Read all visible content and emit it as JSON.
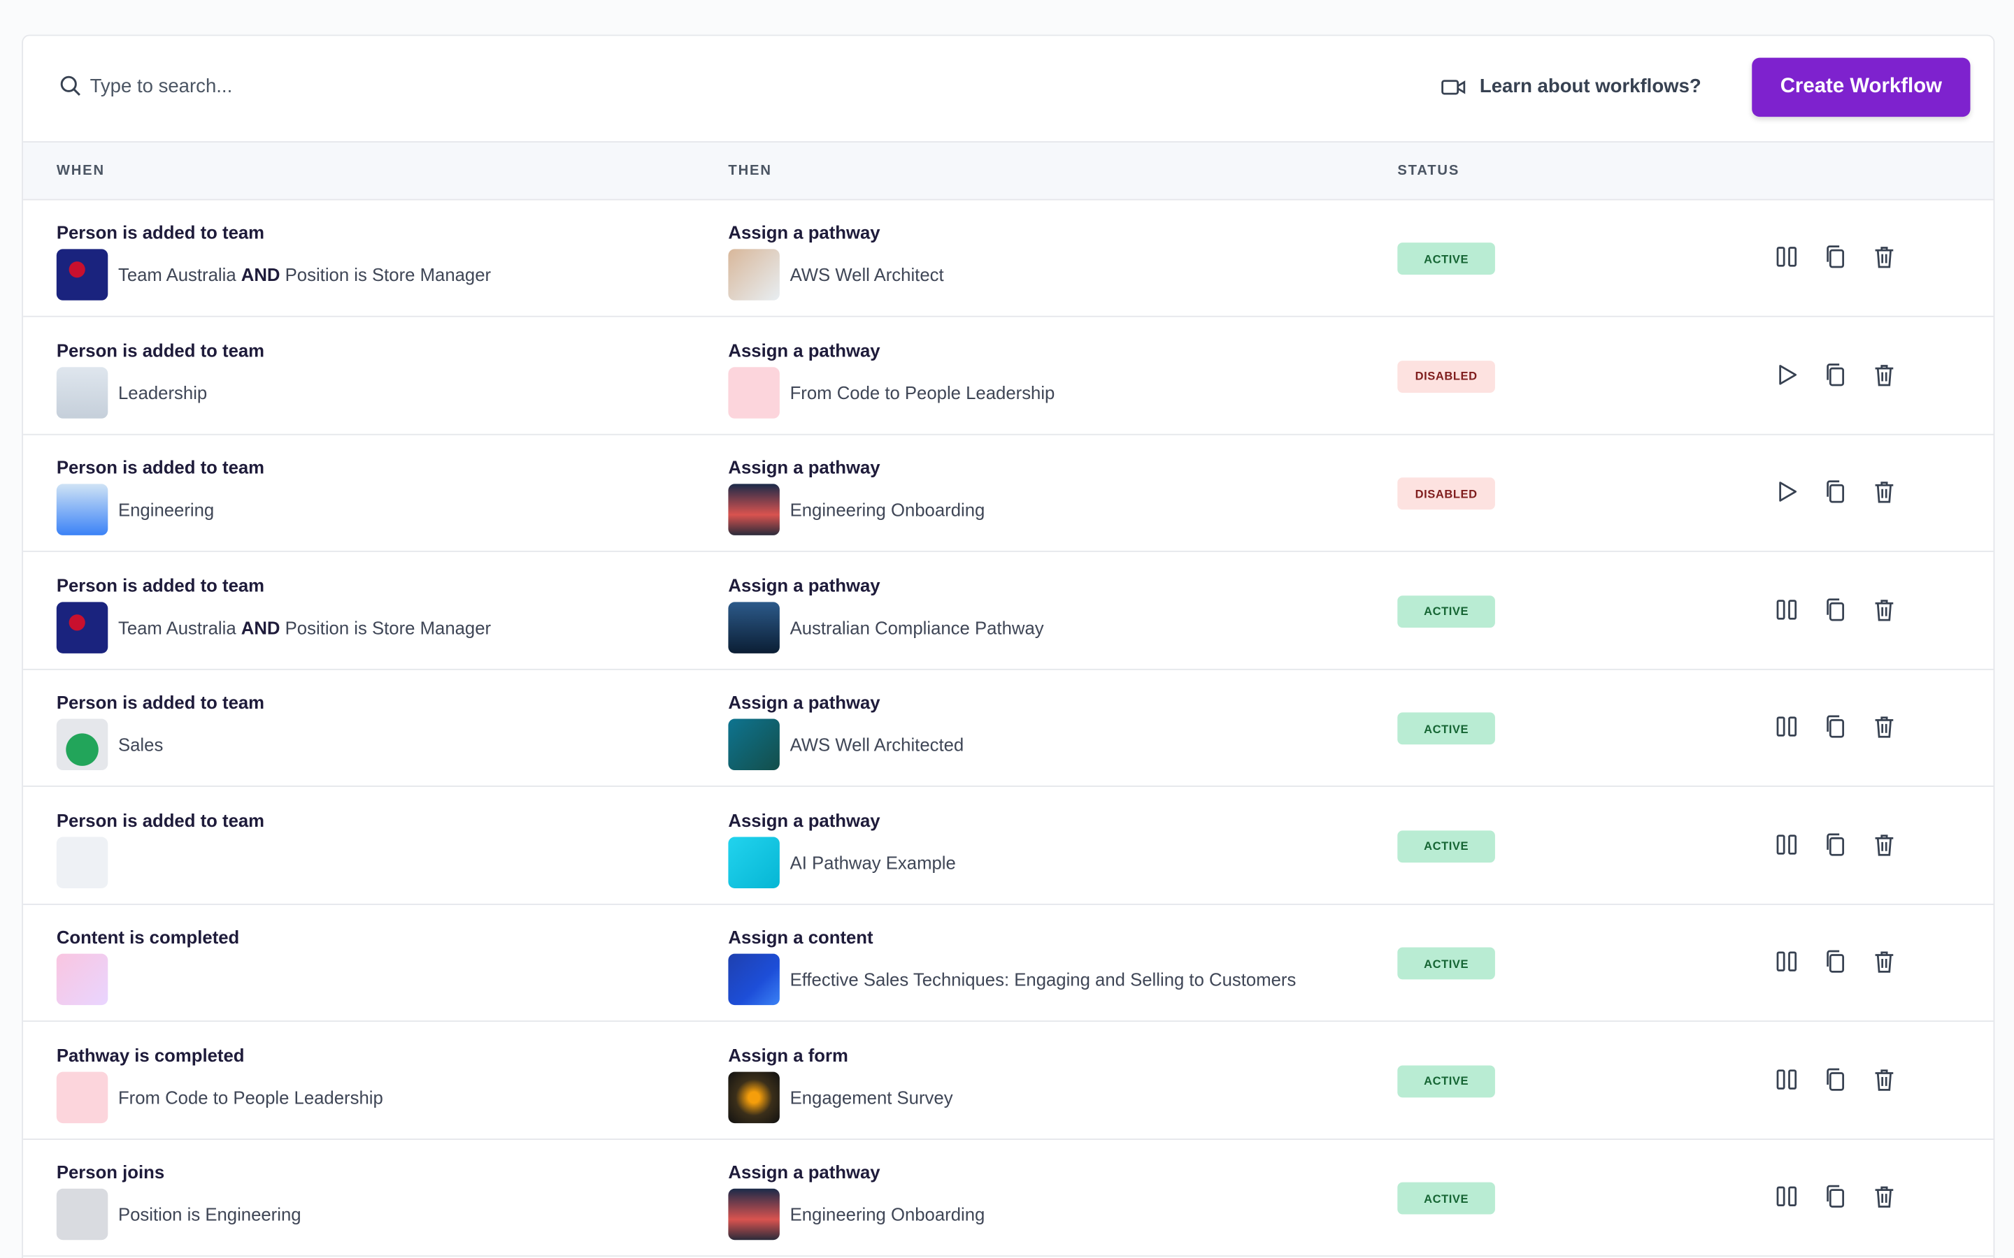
{
  "toolbar": {
    "search_placeholder": "Type to search...",
    "learn_link": "Learn about workflows?",
    "create_button": "Create Workflow"
  },
  "table": {
    "headers": [
      "WHEN",
      "THEN",
      "STATUS"
    ],
    "rows": [
      {
        "when_title": "Person is added to team",
        "when_detail": [
          "Team Australia",
          "AND",
          "Position is Store Manager"
        ],
        "then_title": "Assign a pathway",
        "then_detail": "AWS Well Architect",
        "status": "ACTIVE"
      },
      {
        "when_title": "Person is added to team",
        "when_detail": [
          "Leadership"
        ],
        "then_title": "Assign a pathway",
        "then_detail": "From Code to People Leadership",
        "status": "DISABLED"
      },
      {
        "when_title": "Person is added to team",
        "when_detail": [
          "Engineering"
        ],
        "then_title": "Assign a pathway",
        "then_detail": "Engineering Onboarding",
        "status": "DISABLED"
      },
      {
        "when_title": "Person is added to team",
        "when_detail": [
          "Team Australia",
          "AND",
          "Position is Store Manager"
        ],
        "then_title": "Assign a pathway",
        "then_detail": "Australian Compliance Pathway",
        "status": "ACTIVE"
      },
      {
        "when_title": "Person is added to team",
        "when_detail": [
          "Sales"
        ],
        "then_title": "Assign a pathway",
        "then_detail": "AWS Well Architected",
        "status": "ACTIVE"
      },
      {
        "when_title": "Person is added to team",
        "when_detail": [],
        "then_title": "Assign a pathway",
        "then_detail": "AI Pathway Example",
        "status": "ACTIVE"
      },
      {
        "when_title": "Content is completed",
        "when_detail": [],
        "then_title": "Assign a content",
        "then_detail": "Effective Sales Techniques: Engaging and Selling to Customers",
        "status": "ACTIVE"
      },
      {
        "when_title": "Pathway is completed",
        "when_detail": [
          "From Code to People Leadership"
        ],
        "then_title": "Assign a form",
        "then_detail": "Engagement Survey",
        "status": "ACTIVE"
      },
      {
        "when_title": "Person joins",
        "when_detail": [
          "Position is Engineering"
        ],
        "then_title": "Assign a pathway",
        "then_detail": "Engineering Onboarding",
        "status": "ACTIVE"
      }
    ]
  }
}
